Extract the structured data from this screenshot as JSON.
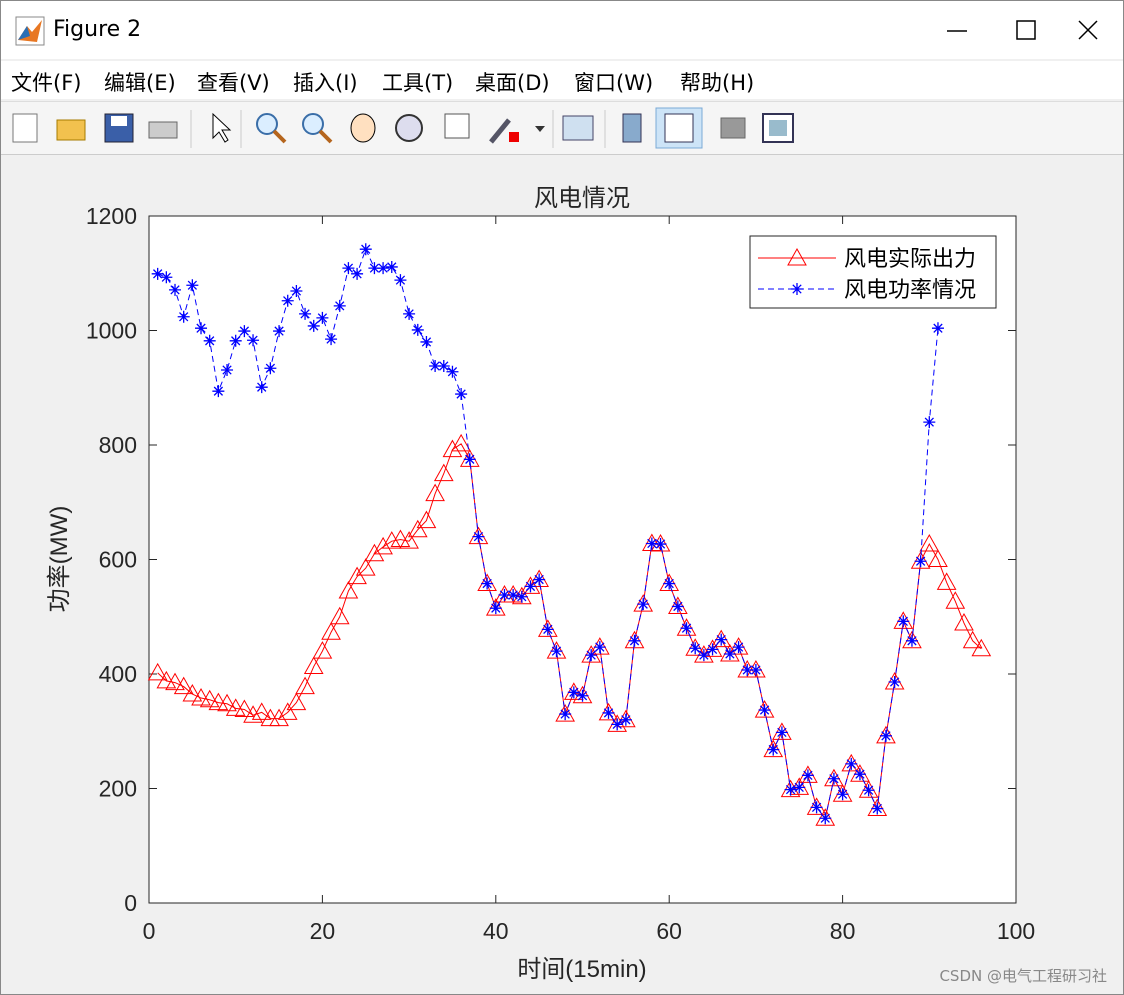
{
  "window": {
    "title": "Figure 2",
    "menu": [
      "文件(F)",
      "编辑(E)",
      "查看(V)",
      "插入(I)",
      "工具(T)",
      "桌面(D)",
      "窗口(W)",
      "帮助(H)"
    ]
  },
  "watermark": "CSDN @电气工程研习社",
  "chart_data": {
    "type": "line",
    "title": "风电情况",
    "x_label": "时间(15min)",
    "y_label": "功率(MW)",
    "x": [
      1,
      2,
      3,
      4,
      5,
      6,
      7,
      8,
      9,
      10,
      11,
      12,
      13,
      14,
      15,
      16,
      17,
      18,
      19,
      20,
      21,
      22,
      23,
      24,
      25,
      26,
      27,
      28,
      29,
      30,
      31,
      32,
      33,
      34,
      35,
      36,
      37,
      38,
      39,
      40,
      41,
      42,
      43,
      44,
      45,
      46,
      47,
      48,
      49,
      50,
      51,
      52,
      53,
      54,
      55,
      56,
      57,
      58,
      59,
      60,
      61,
      62,
      63,
      64,
      65,
      66,
      67,
      68,
      69,
      70,
      71,
      72,
      73,
      74,
      75,
      76,
      77,
      78,
      79,
      80,
      81,
      82,
      83,
      84,
      85,
      86,
      87,
      88,
      89,
      90,
      91,
      92,
      93,
      94,
      95,
      96
    ],
    "series": [
      {
        "name": "风电实际出力",
        "color": "#ff0000",
        "marker": "triangle",
        "dash": "solid",
        "values": [
          402,
          388,
          385,
          378,
          365,
          358,
          355,
          350,
          348,
          340,
          338,
          328,
          333,
          322,
          322,
          333,
          350,
          378,
          413,
          440,
          473,
          500,
          545,
          570,
          585,
          610,
          622,
          632,
          635,
          632,
          652,
          668,
          715,
          750,
          792,
          802,
          775,
          640,
          558,
          515,
          538,
          538,
          535,
          553,
          565,
          478,
          440,
          330,
          368,
          362,
          433,
          447,
          332,
          312,
          320,
          458,
          522,
          628,
          627,
          558,
          518,
          480,
          445,
          433,
          443,
          460,
          435,
          447,
          407,
          407,
          337,
          268,
          298,
          198,
          202,
          223,
          167,
          148,
          217,
          190,
          243,
          225,
          197,
          165,
          292,
          386,
          492,
          458,
          597,
          627,
          600,
          560,
          527,
          489,
          458,
          444
        ]
      },
      {
        "name": "风电功率情况",
        "color": "#0000ff",
        "marker": "asterisk",
        "dash": "dashed",
        "values": [
          1099,
          1093,
          1071,
          1024,
          1079,
          1004,
          982,
          894,
          931,
          982,
          999,
          983,
          901,
          934,
          999,
          1052,
          1069,
          1029,
          1008,
          1022,
          985,
          1043,
          1109,
          1099,
          1142,
          1109,
          1109,
          1111,
          1088,
          1029,
          1001,
          980,
          938,
          938,
          928,
          889,
          775,
          640,
          558,
          515,
          538,
          538,
          535,
          553,
          565,
          478,
          440,
          330,
          368,
          362,
          433,
          447,
          332,
          312,
          320,
          458,
          522,
          628,
          627,
          558,
          518,
          480,
          445,
          433,
          443,
          460,
          435,
          447,
          407,
          407,
          337,
          268,
          298,
          198,
          202,
          223,
          167,
          148,
          217,
          190,
          243,
          225,
          197,
          165,
          292,
          386,
          492,
          458,
          597,
          840,
          1004,
          null,
          null,
          null,
          null,
          null
        ]
      }
    ],
    "xlim": [
      0,
      100
    ],
    "xticks": [
      0,
      20,
      40,
      60,
      80,
      100
    ],
    "ylim": [
      0,
      1200
    ],
    "yticks": [
      0,
      200,
      400,
      600,
      800,
      1000,
      1200
    ],
    "grid": false,
    "legend": "upper right"
  }
}
